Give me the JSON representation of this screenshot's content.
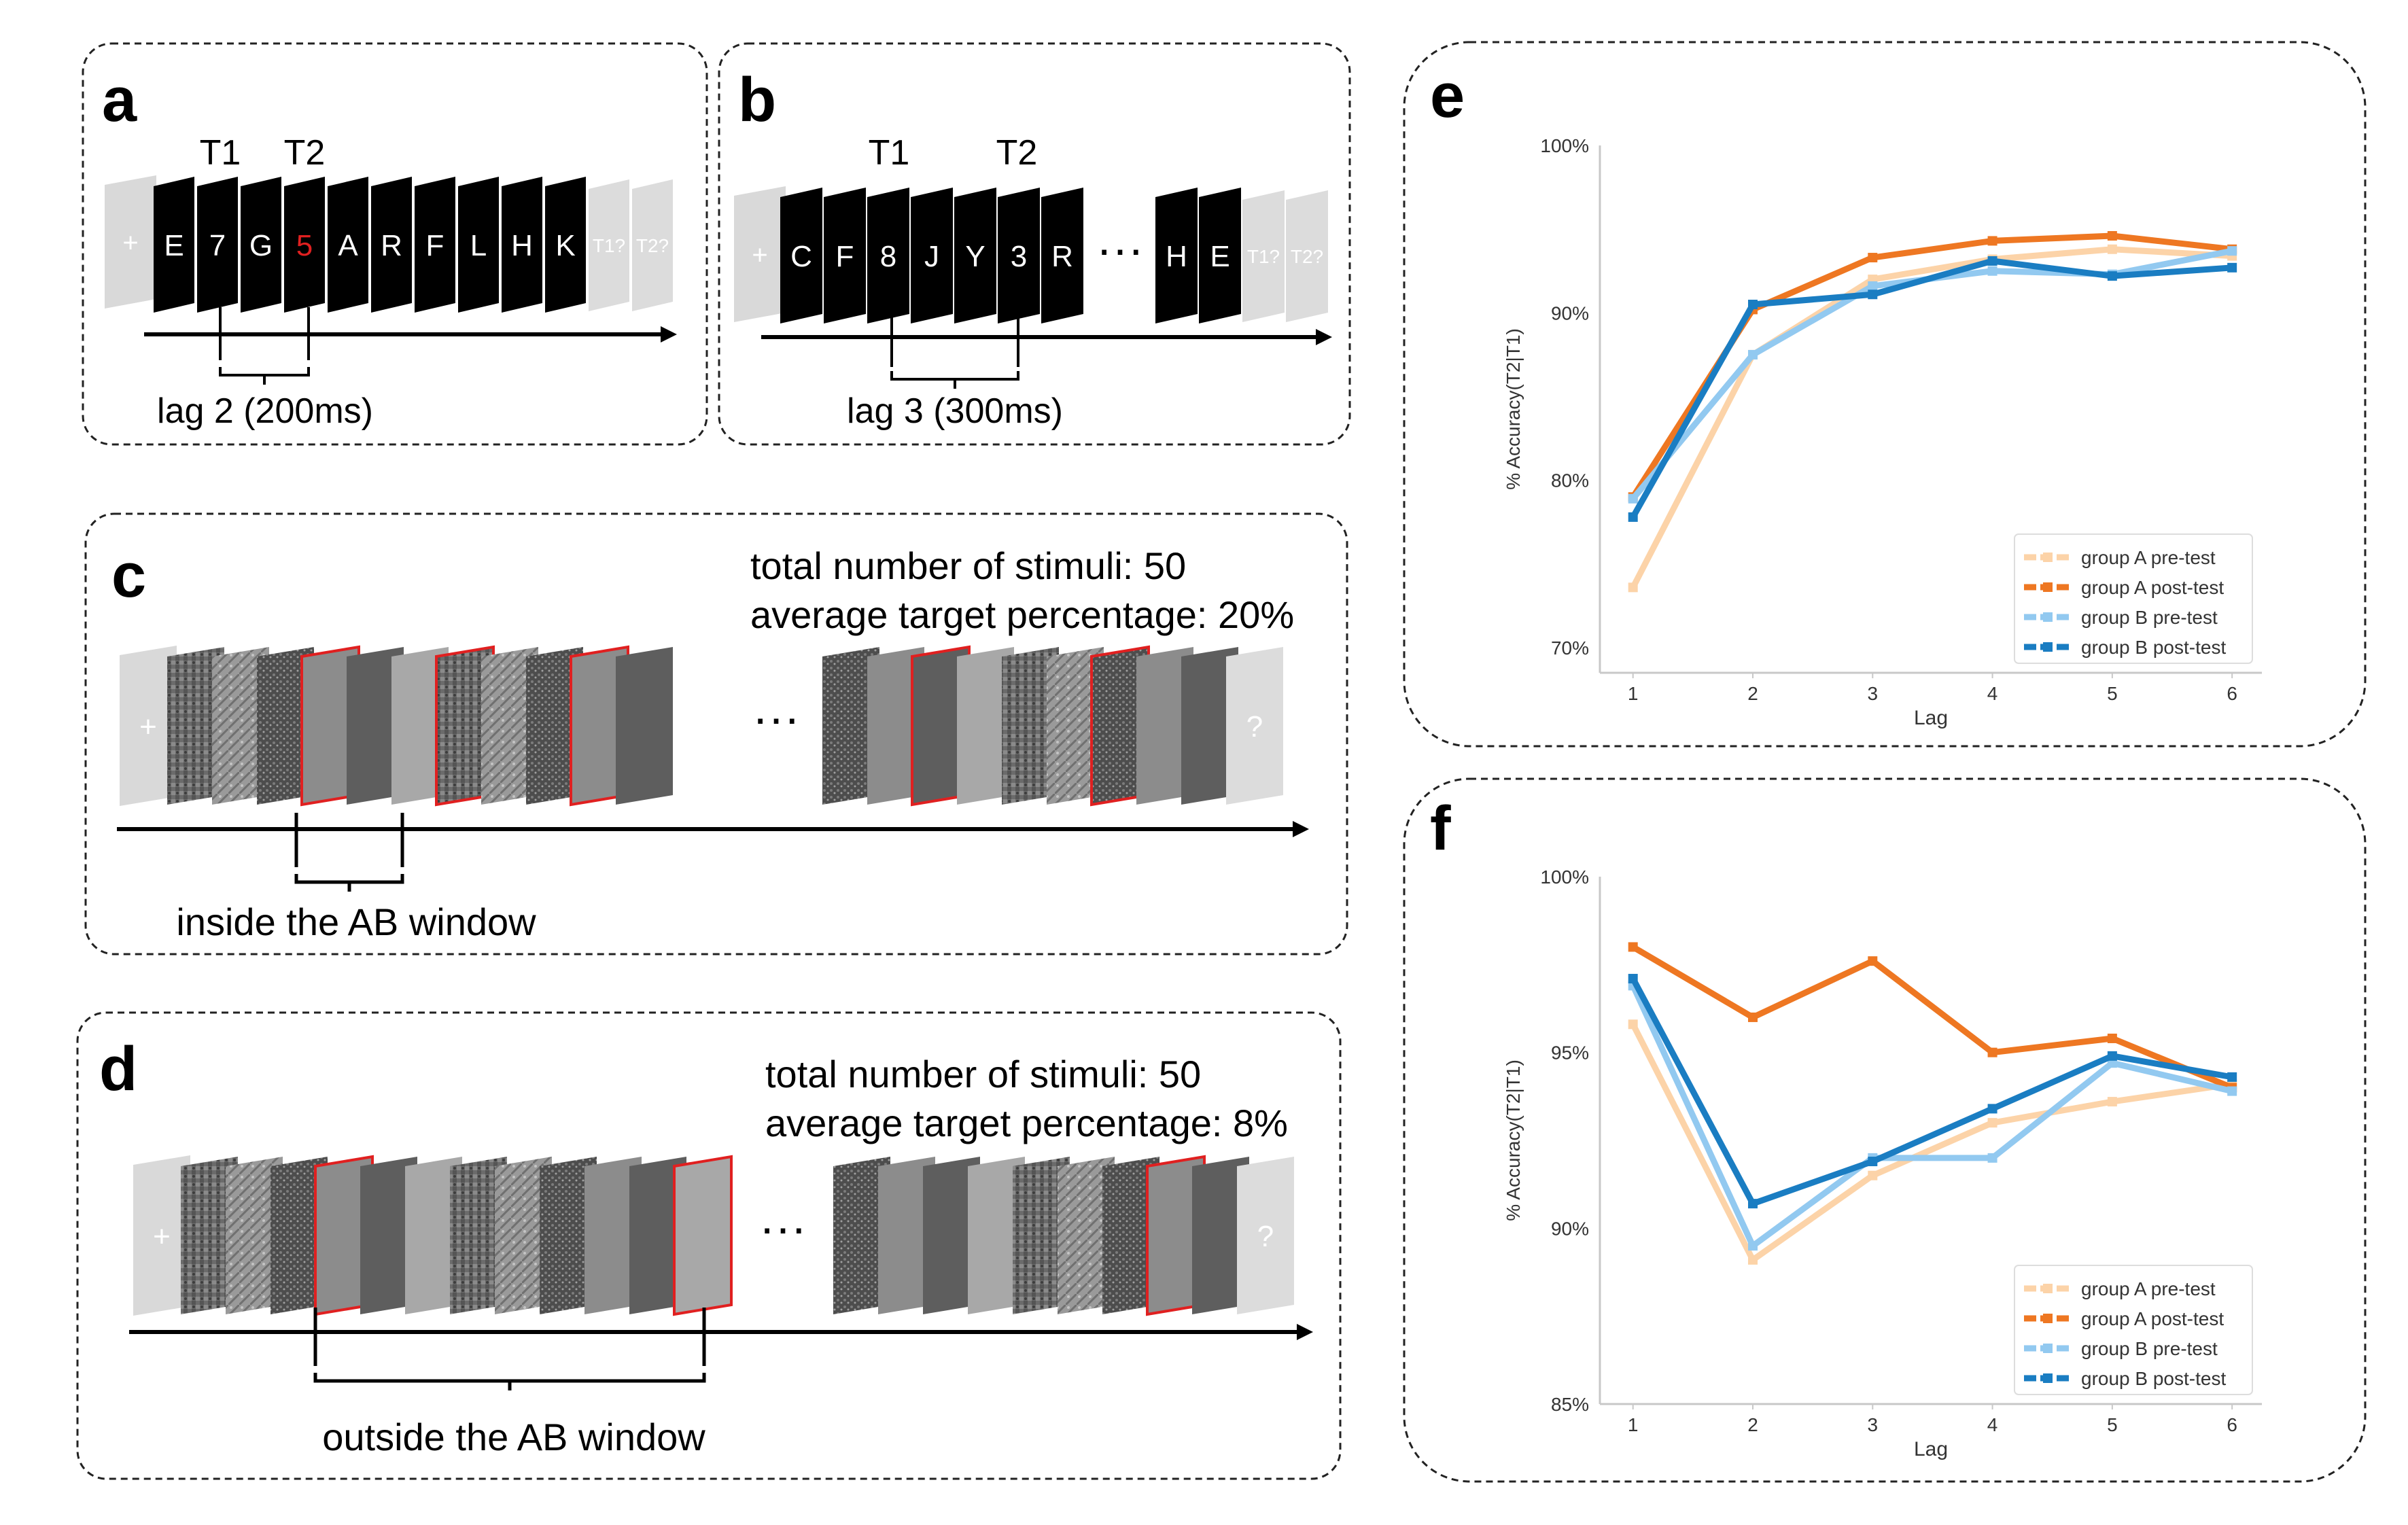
{
  "panels": {
    "a": {
      "letter": "a",
      "t1": "T1",
      "t2": "T2",
      "stream": [
        "E",
        "7",
        "G",
        "5",
        "A",
        "R",
        "F",
        "L",
        "H",
        "K"
      ],
      "target_indices": [
        1,
        3
      ],
      "highlight_index": 3,
      "fixation": "+",
      "tail": [
        "T1?",
        "T2?"
      ],
      "lag_label": "lag 2 (200ms)"
    },
    "b": {
      "letter": "b",
      "t1": "T1",
      "t2": "T2",
      "stream_before": [
        "C",
        "F",
        "8",
        "J",
        "Y",
        "3",
        "R"
      ],
      "stream_after": [
        "H",
        "E"
      ],
      "ellipsis": "···",
      "fixation": "+",
      "tail": [
        "T1?",
        "T2?"
      ],
      "lag_label": "lag 3 (300ms)"
    },
    "c": {
      "letter": "c",
      "total_text": "total number of stimuli: 50",
      "target_text": "average target percentage: 20%",
      "ellipsis": "···",
      "fixation": "+",
      "question": "?",
      "window_label": "inside the AB window"
    },
    "d": {
      "letter": "d",
      "total_text": "total number of stimuli: 50",
      "target_text": "average target percentage: 8%",
      "ellipsis": "···",
      "fixation": "+",
      "question": "?",
      "window_label": "outside the AB window"
    },
    "e": {
      "letter": "e"
    },
    "f": {
      "letter": "f"
    }
  },
  "colors": {
    "group_a_pre": "#fcd3a8",
    "group_a_post": "#ee7722",
    "group_b_pre": "#92c9f0",
    "group_b_post": "#1a7dc2",
    "target_border": "#e02020",
    "highlight_letter": "#e02020"
  },
  "chart_data": [
    {
      "panel": "e",
      "type": "line",
      "xlabel": "Lag",
      "ylabel": "% Accuracy(T2|T1)",
      "x": [
        1,
        2,
        3,
        4,
        5,
        6
      ],
      "ylim": [
        0.685,
        1.0
      ],
      "yticks": [
        0.7,
        0.8,
        0.9,
        1.0
      ],
      "ytick_labels": [
        "70%",
        "80%",
        "90%",
        "100%"
      ],
      "legend_position": "lower-right",
      "series": [
        {
          "name": "group A pre-test",
          "color_key": "group_a_pre",
          "values": [
            0.736,
            0.875,
            0.92,
            0.932,
            0.938,
            0.934
          ]
        },
        {
          "name": "group A post-test",
          "color_key": "group_a_post",
          "values": [
            0.79,
            0.902,
            0.933,
            0.943,
            0.946,
            0.938
          ]
        },
        {
          "name": "group B pre-test",
          "color_key": "group_b_pre",
          "values": [
            0.789,
            0.875,
            0.916,
            0.925,
            0.923,
            0.937
          ]
        },
        {
          "name": "group B post-test",
          "color_key": "group_b_post",
          "values": [
            0.778,
            0.905,
            0.911,
            0.931,
            0.922,
            0.927
          ]
        }
      ]
    },
    {
      "panel": "f",
      "type": "line",
      "xlabel": "Lag",
      "ylabel": "% Accuracy(T2|T1)",
      "x": [
        1,
        2,
        3,
        4,
        5,
        6
      ],
      "ylim": [
        0.85,
        1.0
      ],
      "yticks": [
        0.85,
        0.9,
        0.95,
        1.0
      ],
      "ytick_labels": [
        "85%",
        "90%",
        "95%",
        "100%"
      ],
      "legend_position": "lower-right",
      "series": [
        {
          "name": "group A pre-test",
          "color_key": "group_a_pre",
          "values": [
            0.958,
            0.891,
            0.915,
            0.93,
            0.936,
            0.941
          ]
        },
        {
          "name": "group A post-test",
          "color_key": "group_a_post",
          "values": [
            0.98,
            0.96,
            0.976,
            0.95,
            0.954,
            0.94
          ]
        },
        {
          "name": "group B pre-test",
          "color_key": "group_b_pre",
          "values": [
            0.969,
            0.895,
            0.92,
            0.92,
            0.947,
            0.939
          ]
        },
        {
          "name": "group B post-test",
          "color_key": "group_b_post",
          "values": [
            0.971,
            0.907,
            0.919,
            0.934,
            0.949,
            0.943
          ]
        }
      ]
    }
  ]
}
